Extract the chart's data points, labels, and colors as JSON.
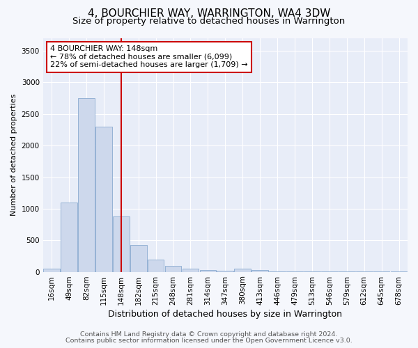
{
  "title": "4, BOURCHIER WAY, WARRINGTON, WA4 3DW",
  "subtitle": "Size of property relative to detached houses in Warrington",
  "xlabel": "Distribution of detached houses by size in Warrington",
  "ylabel": "Number of detached properties",
  "bar_color": "#cdd8ec",
  "bar_edge_color": "#8aaad0",
  "categories": [
    "16sqm",
    "49sqm",
    "82sqm",
    "115sqm",
    "148sqm",
    "182sqm",
    "215sqm",
    "248sqm",
    "281sqm",
    "314sqm",
    "347sqm",
    "380sqm",
    "413sqm",
    "446sqm",
    "479sqm",
    "513sqm",
    "546sqm",
    "579sqm",
    "612sqm",
    "645sqm",
    "678sqm"
  ],
  "values": [
    50,
    1100,
    2750,
    2300,
    880,
    430,
    190,
    100,
    55,
    28,
    18,
    50,
    30,
    8,
    4,
    3,
    2,
    2,
    1,
    1,
    1
  ],
  "ylim": [
    0,
    3700
  ],
  "yticks": [
    0,
    500,
    1000,
    1500,
    2000,
    2500,
    3000,
    3500
  ],
  "vline_x_idx": 4,
  "vline_color": "#cc0000",
  "ann_line1": "4 BOURCHIER WAY: 148sqm",
  "ann_line2": "← 78% of detached houses are smaller (6,099)",
  "ann_line3": "22% of semi-detached houses are larger (1,709) →",
  "annotation_box_color": "#cc0000",
  "footer_line1": "Contains HM Land Registry data © Crown copyright and database right 2024.",
  "footer_line2": "Contains public sector information licensed under the Open Government Licence v3.0.",
  "bg_color": "#f5f7fc",
  "plot_bg_color": "#e8edf8",
  "grid_color": "#ffffff",
  "title_fontsize": 11,
  "subtitle_fontsize": 9.5,
  "xlabel_fontsize": 9,
  "ylabel_fontsize": 8,
  "tick_fontsize": 7.5,
  "footer_fontsize": 6.8
}
